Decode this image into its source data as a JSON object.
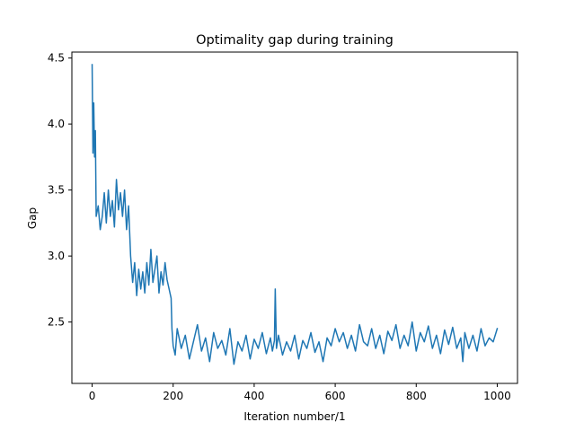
{
  "chart_data": {
    "type": "line",
    "title": "Optimality gap during training",
    "xlabel": "Iteration number/1",
    "ylabel": "Gap",
    "xlim": [
      -50,
      1050
    ],
    "ylim": [
      2.035,
      4.545
    ],
    "x_ticks": [
      0,
      200,
      400,
      600,
      800,
      1000
    ],
    "y_ticks": [
      2.5,
      3.0,
      3.5,
      4.0,
      4.5
    ],
    "x_tick_labels": [
      "0",
      "200",
      "400",
      "600",
      "800",
      "1000"
    ],
    "y_tick_labels": [
      "2.5",
      "3.0",
      "3.5",
      "4.0",
      "4.5"
    ],
    "grid": false,
    "legend": "none",
    "colors": {
      "line": "#1f77b4",
      "axes": "#000000",
      "background": "#ffffff"
    },
    "series": [
      {
        "x": [
          0,
          2,
          4,
          6,
          8,
          10,
          15,
          20,
          25,
          30,
          35,
          40,
          45,
          50,
          55,
          60,
          65,
          70,
          75,
          80,
          85,
          90,
          95,
          100,
          105,
          110,
          115,
          120,
          125,
          130,
          135,
          140,
          145,
          150,
          155,
          160,
          165,
          170,
          175,
          180,
          185,
          190,
          195,
          197,
          200,
          205,
          210,
          220,
          230,
          240,
          250,
          260,
          270,
          280,
          290,
          300,
          310,
          320,
          330,
          340,
          350,
          360,
          370,
          380,
          390,
          400,
          410,
          420,
          430,
          440,
          445,
          450,
          452,
          455,
          460,
          470,
          480,
          490,
          500,
          510,
          520,
          530,
          540,
          550,
          560,
          570,
          580,
          590,
          600,
          610,
          620,
          630,
          640,
          650,
          660,
          670,
          680,
          690,
          700,
          710,
          720,
          730,
          740,
          750,
          760,
          770,
          780,
          790,
          800,
          810,
          820,
          830,
          840,
          850,
          860,
          870,
          880,
          890,
          900,
          910,
          915,
          920,
          930,
          940,
          950,
          960,
          970,
          980,
          990,
          1000
        ],
        "y": [
          4.45,
          3.78,
          4.16,
          3.75,
          3.95,
          3.3,
          3.38,
          3.2,
          3.3,
          3.48,
          3.25,
          3.5,
          3.3,
          3.42,
          3.22,
          3.58,
          3.35,
          3.48,
          3.3,
          3.5,
          3.2,
          3.38,
          3.0,
          2.8,
          2.95,
          2.7,
          2.9,
          2.75,
          2.88,
          2.72,
          2.95,
          2.78,
          3.05,
          2.8,
          2.9,
          3.0,
          2.72,
          2.88,
          2.78,
          2.95,
          2.82,
          2.75,
          2.68,
          2.45,
          2.32,
          2.25,
          2.45,
          2.3,
          2.4,
          2.22,
          2.35,
          2.48,
          2.28,
          2.38,
          2.2,
          2.42,
          2.3,
          2.36,
          2.25,
          2.45,
          2.18,
          2.35,
          2.28,
          2.4,
          2.22,
          2.37,
          2.3,
          2.42,
          2.26,
          2.38,
          2.28,
          2.36,
          2.75,
          2.3,
          2.4,
          2.25,
          2.35,
          2.28,
          2.4,
          2.22,
          2.36,
          2.3,
          2.42,
          2.27,
          2.35,
          2.2,
          2.38,
          2.32,
          2.45,
          2.35,
          2.42,
          2.3,
          2.4,
          2.28,
          2.48,
          2.35,
          2.32,
          2.45,
          2.3,
          2.4,
          2.26,
          2.43,
          2.36,
          2.48,
          2.3,
          2.4,
          2.32,
          2.5,
          2.28,
          2.42,
          2.35,
          2.47,
          2.3,
          2.4,
          2.26,
          2.44,
          2.33,
          2.46,
          2.3,
          2.38,
          2.2,
          2.42,
          2.3,
          2.4,
          2.28,
          2.45,
          2.32,
          2.38,
          2.35,
          2.45
        ]
      }
    ]
  }
}
